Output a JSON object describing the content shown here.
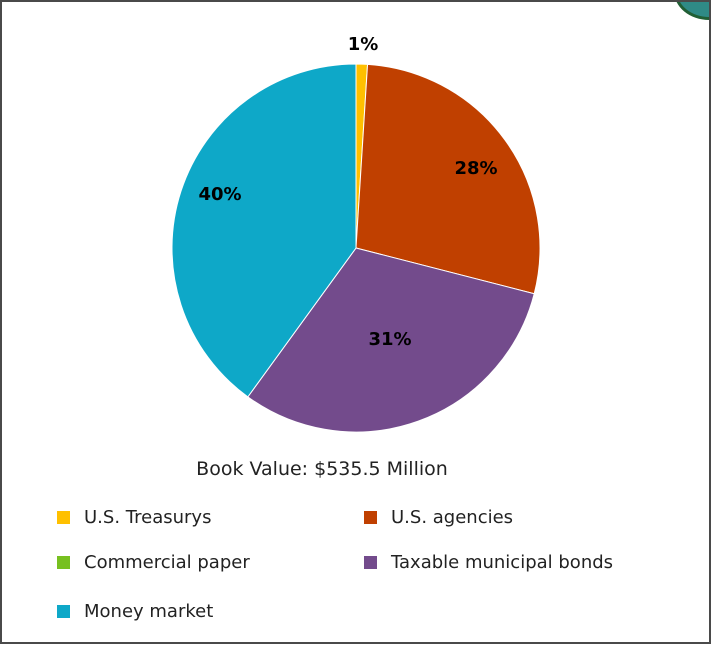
{
  "chart_data": {
    "type": "pie",
    "subtitle": "Book Value: $535.5 Million",
    "slices": [
      {
        "name": "U.S. Treasurys",
        "value": 1,
        "label": "1%",
        "color": "#ffc000"
      },
      {
        "name": "U.S. agencies",
        "value": 28,
        "label": "28%",
        "color": "#c04000"
      },
      {
        "name": "Commercial paper",
        "value": 0,
        "label": "",
        "color": "#77c020"
      },
      {
        "name": "Taxable municipal bonds",
        "value": 31,
        "label": "31%",
        "color": "#734b8c"
      },
      {
        "name": "Money market",
        "value": 40,
        "label": "40%",
        "color": "#0ea8c8"
      }
    ],
    "legend_placement": "bottom"
  }
}
